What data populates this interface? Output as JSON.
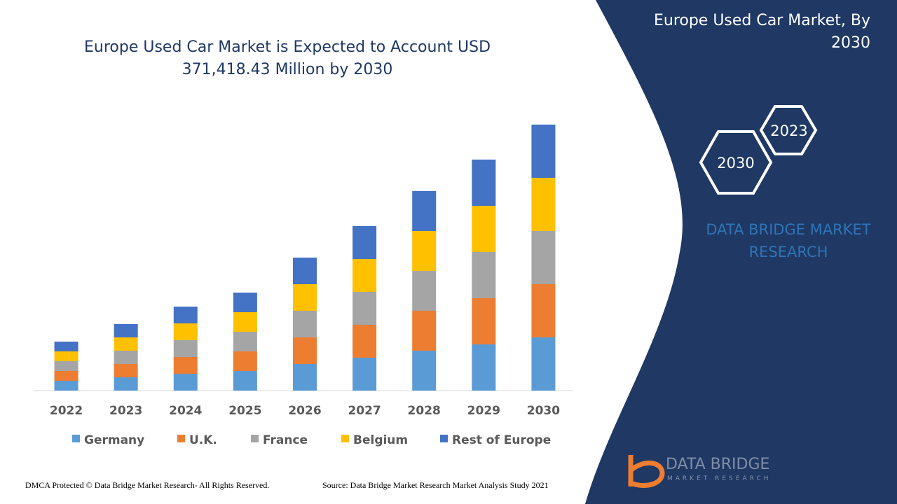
{
  "chart_data": {
    "type": "stacked_bar",
    "title": "Europe Used Car Market is Expected to Account USD 371,418.43 Million by 2030",
    "categories": [
      "2022",
      "2023",
      "2024",
      "2025",
      "2026",
      "2027",
      "2028",
      "2029",
      "2030"
    ],
    "series": [
      {
        "name": "Germany",
        "color": "#5b9bd5",
        "values": [
          14,
          19,
          24,
          28,
          38,
          47,
          57,
          66,
          76
        ]
      },
      {
        "name": "U.K.",
        "color": "#ed7d31",
        "values": [
          14,
          19,
          24,
          28,
          38,
          47,
          57,
          66,
          76
        ]
      },
      {
        "name": "France",
        "color": "#a5a5a5",
        "values": [
          14,
          19,
          24,
          28,
          38,
          47,
          57,
          66,
          76
        ]
      },
      {
        "name": "Belgium",
        "color": "#ffc000",
        "values": [
          14,
          19,
          24,
          28,
          38,
          47,
          57,
          66,
          76
        ]
      },
      {
        "name": "Rest of Europe",
        "color": "#4472c4",
        "values": [
          14,
          19,
          24,
          28,
          38,
          47,
          57,
          66,
          76
        ]
      }
    ],
    "legend": "bottom"
  },
  "sidebar": {
    "heading": "Europe Used Car Market, By 2030",
    "hex_labels": [
      "2023",
      "2030"
    ],
    "brand": "DATA BRIDGE MARKET RESEARCH",
    "logo_title": "DATA BRIDGE",
    "logo_subtitle": "MARKET RESEARCH"
  },
  "footer": {
    "copyright": "DMCA Protected © Data Bridge Market Research- All Rights Reserved.",
    "source": "Source: Data Bridge Market Research Market Analysis Study 2021"
  }
}
